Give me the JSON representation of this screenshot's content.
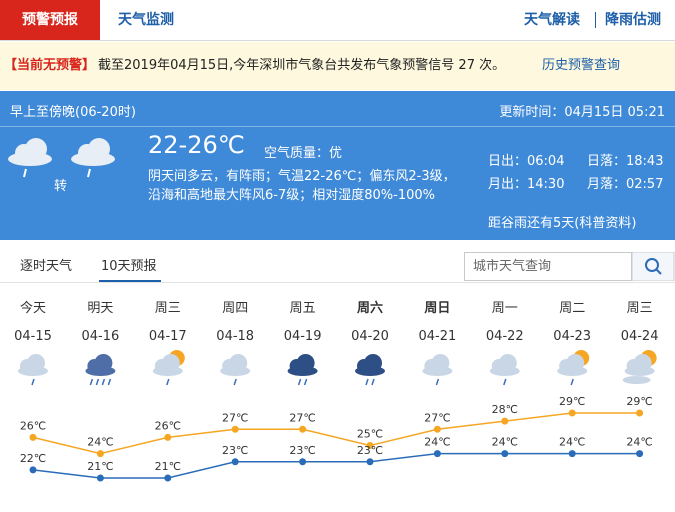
{
  "nav": {
    "tabs": [
      "预警预报",
      "天气监测"
    ],
    "links": [
      "天气解读",
      "降雨估测"
    ]
  },
  "alert": {
    "status": "【当前无预警】",
    "message": "截至2019年04月15日,今年深圳市气象台共发布气象预警信号 27 次。",
    "link": "历史预警查询"
  },
  "today": {
    "period": "早上至傍晚(06-20时)",
    "updated": "更新时间：04月15日 05:21",
    "transition": "转",
    "temperature": "22-26℃",
    "air_quality": "空气质量：优",
    "description": [
      "阴天间多云，有阵雨；气温22-26℃；偏东风2-3级，",
      "沿海和高地最大阵风6-7级；相对湿度80%-100%"
    ],
    "sun_moon": [
      [
        "日出：06:04",
        "日落：18:43"
      ],
      [
        "月出：14:30",
        "月落：02:57"
      ]
    ],
    "solar_term": "距谷雨还有5天(科普资料)"
  },
  "forecast_tabs": [
    "逐时天气",
    "10天预报"
  ],
  "search_placeholder": "城市天气查询",
  "chart_data": {
    "type": "line",
    "categories": [
      "今天",
      "明天",
      "周三",
      "周四",
      "周五",
      "周六",
      "周日",
      "周一",
      "周二",
      "周三"
    ],
    "dates": [
      "04-15",
      "04-16",
      "04-17",
      "04-18",
      "04-19",
      "04-20",
      "04-21",
      "04-22",
      "04-23",
      "04-24"
    ],
    "series": [
      {
        "color": "#f5a623",
        "values": [
          26,
          24,
          26,
          27,
          27,
          25,
          27,
          28,
          29,
          29
        ],
        "value_labels": [
          "26℃",
          "24℃",
          "26℃",
          "27℃",
          "27℃",
          "25℃",
          "27℃",
          "28℃",
          "29℃",
          "29℃"
        ]
      },
      {
        "color": "#2b6cb8",
        "values": [
          22,
          21,
          21,
          23,
          23,
          23,
          24,
          24,
          24,
          24
        ],
        "value_labels": [
          "22℃",
          "21℃",
          "21℃",
          "23℃",
          "23℃",
          "23℃",
          "24℃",
          "24℃",
          "24℃",
          "24℃"
        ]
      }
    ]
  }
}
